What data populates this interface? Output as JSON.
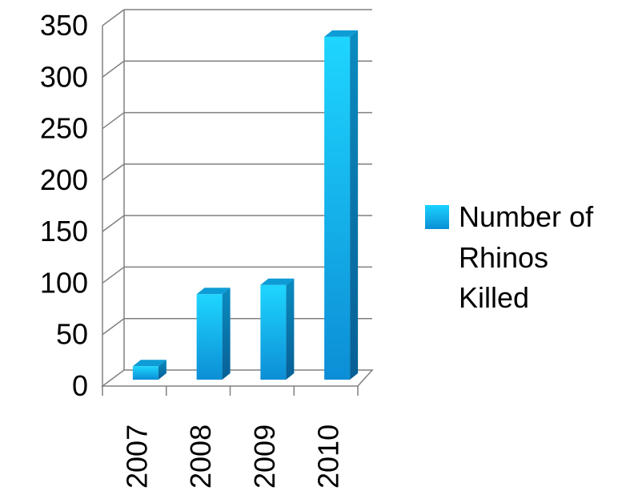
{
  "chart_data": {
    "type": "bar",
    "categories": [
      "2007",
      "2008",
      "2009",
      "2010"
    ],
    "series": [
      {
        "name": "Number of Rhinos Killed",
        "values": [
          13,
          83,
          92,
          333
        ]
      }
    ],
    "ylim": [
      0,
      350
    ],
    "yticks": [
      "0",
      "50",
      "100",
      "150",
      "200",
      "250",
      "300",
      "350"
    ],
    "legend": {
      "position": "right",
      "lines": [
        "Number of",
        "Rhinos",
        "Killed"
      ]
    },
    "grid": true,
    "style": "3d-column",
    "colors": {
      "bar_light": "#19D3FF",
      "bar_dark": "#0A82C9",
      "bar_side": "#0B6FAA",
      "bar_top": "#0E9CD6",
      "grid": "#808080",
      "floor": "#7F7F7F"
    }
  }
}
